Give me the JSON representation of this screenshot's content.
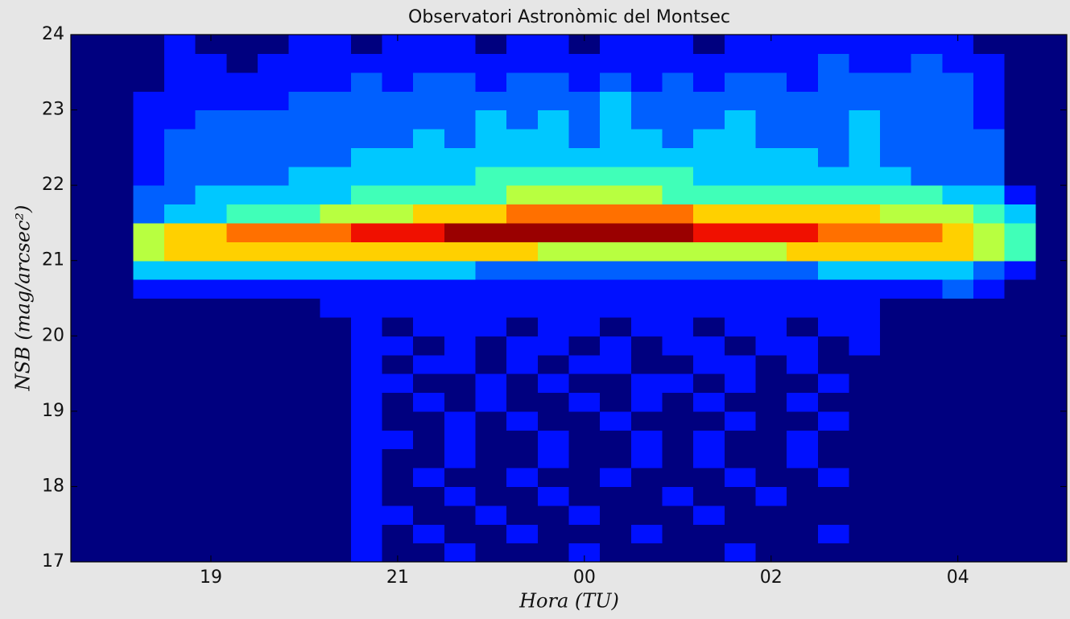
{
  "chart_data": {
    "type": "heatmap",
    "title": "Observatori Astronòmic del Montsec",
    "x_label": "Hora (TU)",
    "y_label": "NSB (mag/arcsec²)",
    "categories": [
      null,
      null,
      null,
      null,
      "19",
      null,
      null,
      null,
      null,
      null,
      "21",
      null,
      null,
      null,
      null,
      null,
      "00",
      null,
      null,
      null,
      null,
      null,
      "02",
      null,
      null,
      null,
      null,
      null,
      "04",
      null,
      null,
      null
    ],
    "ybins": [
      17,
      17.25,
      17.5,
      17.75,
      18,
      18.25,
      18.5,
      18.75,
      19,
      19.25,
      19.5,
      19.75,
      20,
      20.25,
      20.5,
      20.75,
      21,
      21.25,
      21.5,
      21.75,
      22,
      22.25,
      22.5,
      22.75,
      23,
      23.25,
      23.5,
      23.75,
      24
    ],
    "ylim": [
      17,
      24
    ],
    "yticks": [
      17,
      18,
      19,
      20,
      21,
      22,
      23,
      24
    ],
    "colors": [
      "#00007f",
      "#0010ff",
      "#0060ff",
      "#00c8ff",
      "#40ffb8",
      "#b8ff40",
      "#ffd000",
      "#ff7000",
      "#f01000",
      "#9a0000"
    ],
    "z": [
      [
        0,
        0,
        0,
        0,
        0,
        0,
        0,
        0,
        0,
        1,
        0,
        0,
        1,
        0,
        0,
        0,
        1,
        0,
        0,
        0,
        0,
        1,
        0,
        0,
        0,
        0,
        0,
        0,
        0,
        0,
        0,
        0
      ],
      [
        0,
        0,
        0,
        0,
        0,
        0,
        0,
        0,
        0,
        1,
        0,
        1,
        0,
        0,
        1,
        0,
        0,
        0,
        1,
        0,
        0,
        0,
        0,
        0,
        1,
        0,
        0,
        0,
        0,
        0,
        0,
        0
      ],
      [
        0,
        0,
        0,
        0,
        0,
        0,
        0,
        0,
        0,
        1,
        1,
        0,
        0,
        1,
        0,
        0,
        1,
        0,
        0,
        0,
        1,
        0,
        0,
        0,
        0,
        0,
        0,
        0,
        0,
        0,
        0,
        0
      ],
      [
        0,
        0,
        0,
        0,
        0,
        0,
        0,
        0,
        0,
        1,
        0,
        0,
        1,
        0,
        0,
        1,
        0,
        0,
        0,
        1,
        0,
        0,
        1,
        0,
        0,
        0,
        0,
        0,
        0,
        0,
        0,
        0
      ],
      [
        0,
        0,
        0,
        0,
        0,
        0,
        0,
        0,
        0,
        1,
        0,
        1,
        0,
        0,
        1,
        0,
        0,
        1,
        0,
        0,
        0,
        1,
        0,
        0,
        1,
        0,
        0,
        0,
        0,
        0,
        0,
        0
      ],
      [
        0,
        0,
        0,
        0,
        0,
        0,
        0,
        0,
        0,
        1,
        0,
        0,
        1,
        0,
        0,
        1,
        0,
        0,
        1,
        0,
        1,
        0,
        0,
        1,
        0,
        0,
        0,
        0,
        0,
        0,
        0,
        0
      ],
      [
        0,
        0,
        0,
        0,
        0,
        0,
        0,
        0,
        0,
        1,
        1,
        0,
        1,
        0,
        0,
        1,
        0,
        0,
        1,
        0,
        1,
        0,
        0,
        1,
        0,
        0,
        0,
        0,
        0,
        0,
        0,
        0
      ],
      [
        0,
        0,
        0,
        0,
        0,
        0,
        0,
        0,
        0,
        1,
        0,
        0,
        1,
        0,
        1,
        0,
        0,
        1,
        0,
        0,
        0,
        1,
        0,
        0,
        1,
        0,
        0,
        0,
        0,
        0,
        0,
        0
      ],
      [
        0,
        0,
        0,
        0,
        0,
        0,
        0,
        0,
        0,
        1,
        0,
        1,
        0,
        1,
        0,
        0,
        1,
        0,
        1,
        0,
        1,
        0,
        0,
        1,
        0,
        0,
        0,
        0,
        0,
        0,
        0,
        0
      ],
      [
        0,
        0,
        0,
        0,
        0,
        0,
        0,
        0,
        0,
        1,
        1,
        0,
        0,
        1,
        0,
        1,
        0,
        0,
        1,
        1,
        0,
        1,
        0,
        0,
        1,
        0,
        0,
        0,
        0,
        0,
        0,
        0
      ],
      [
        0,
        0,
        0,
        0,
        0,
        0,
        0,
        0,
        0,
        1,
        0,
        1,
        1,
        0,
        1,
        0,
        1,
        1,
        0,
        0,
        1,
        1,
        0,
        1,
        0,
        0,
        0,
        0,
        0,
        0,
        0,
        0
      ],
      [
        0,
        0,
        0,
        0,
        0,
        0,
        0,
        0,
        0,
        1,
        1,
        0,
        1,
        0,
        1,
        1,
        0,
        1,
        0,
        1,
        1,
        0,
        1,
        1,
        0,
        1,
        0,
        0,
        0,
        0,
        0,
        0
      ],
      [
        0,
        0,
        0,
        0,
        0,
        0,
        0,
        0,
        0,
        1,
        0,
        1,
        1,
        1,
        0,
        1,
        1,
        0,
        1,
        1,
        0,
        1,
        1,
        0,
        1,
        1,
        0,
        0,
        0,
        0,
        0,
        0
      ],
      [
        0,
        0,
        0,
        0,
        0,
        0,
        0,
        0,
        1,
        1,
        1,
        1,
        1,
        1,
        1,
        1,
        1,
        1,
        1,
        1,
        1,
        1,
        1,
        1,
        1,
        1,
        0,
        0,
        0,
        0,
        0,
        0
      ],
      [
        0,
        0,
        1,
        1,
        1,
        1,
        1,
        1,
        1,
        1,
        1,
        1,
        1,
        1,
        1,
        1,
        1,
        1,
        1,
        1,
        1,
        1,
        1,
        1,
        1,
        1,
        1,
        1,
        2,
        1,
        0,
        0
      ],
      [
        0,
        0,
        3,
        3,
        3,
        3,
        3,
        3,
        3,
        3,
        3,
        3,
        3,
        2,
        2,
        2,
        2,
        2,
        2,
        2,
        2,
        2,
        2,
        2,
        3,
        3,
        3,
        3,
        3,
        2,
        1,
        0
      ],
      [
        0,
        0,
        5,
        6,
        6,
        6,
        6,
        6,
        6,
        6,
        6,
        6,
        6,
        6,
        6,
        5,
        5,
        5,
        5,
        5,
        5,
        5,
        5,
        6,
        6,
        6,
        6,
        6,
        6,
        5,
        4,
        0
      ],
      [
        0,
        0,
        5,
        6,
        6,
        7,
        7,
        7,
        7,
        8,
        8,
        8,
        9,
        9,
        9,
        9,
        9,
        9,
        9,
        9,
        8,
        8,
        8,
        8,
        7,
        7,
        7,
        7,
        6,
        5,
        4,
        0
      ],
      [
        0,
        0,
        2,
        3,
        3,
        4,
        4,
        4,
        5,
        5,
        5,
        6,
        6,
        6,
        7,
        7,
        7,
        7,
        7,
        7,
        6,
        6,
        6,
        6,
        6,
        6,
        5,
        5,
        5,
        4,
        3,
        0
      ],
      [
        0,
        0,
        2,
        2,
        3,
        3,
        3,
        3,
        3,
        4,
        4,
        4,
        4,
        4,
        5,
        5,
        5,
        5,
        5,
        4,
        4,
        4,
        4,
        4,
        4,
        4,
        4,
        4,
        3,
        3,
        1,
        0
      ],
      [
        0,
        0,
        1,
        2,
        2,
        2,
        2,
        3,
        3,
        3,
        3,
        3,
        3,
        4,
        4,
        4,
        4,
        4,
        4,
        4,
        3,
        3,
        3,
        3,
        3,
        3,
        3,
        2,
        2,
        2,
        0,
        0
      ],
      [
        0,
        0,
        1,
        2,
        2,
        2,
        2,
        2,
        2,
        3,
        3,
        3,
        3,
        3,
        3,
        3,
        3,
        3,
        3,
        3,
        3,
        3,
        3,
        3,
        2,
        3,
        2,
        2,
        2,
        2,
        0,
        0
      ],
      [
        0,
        0,
        1,
        2,
        2,
        2,
        2,
        2,
        2,
        2,
        2,
        3,
        2,
        3,
        3,
        3,
        2,
        3,
        3,
        2,
        3,
        3,
        2,
        2,
        2,
        3,
        2,
        2,
        2,
        2,
        0,
        0
      ],
      [
        0,
        0,
        1,
        1,
        2,
        2,
        2,
        2,
        2,
        2,
        2,
        2,
        2,
        3,
        2,
        3,
        2,
        3,
        2,
        2,
        2,
        3,
        2,
        2,
        2,
        3,
        2,
        2,
        2,
        1,
        0,
        0
      ],
      [
        0,
        0,
        1,
        1,
        1,
        1,
        1,
        2,
        2,
        2,
        2,
        2,
        2,
        2,
        2,
        2,
        2,
        3,
        2,
        2,
        2,
        2,
        2,
        2,
        2,
        2,
        2,
        2,
        2,
        1,
        0,
        0
      ],
      [
        0,
        0,
        0,
        1,
        1,
        1,
        1,
        1,
        1,
        2,
        1,
        2,
        2,
        1,
        2,
        2,
        1,
        2,
        1,
        2,
        1,
        2,
        2,
        1,
        2,
        2,
        2,
        2,
        2,
        1,
        0,
        0
      ],
      [
        0,
        0,
        0,
        1,
        1,
        0,
        1,
        1,
        1,
        1,
        1,
        1,
        1,
        1,
        1,
        1,
        1,
        1,
        1,
        1,
        1,
        1,
        1,
        1,
        2,
        1,
        1,
        2,
        1,
        1,
        0,
        0
      ],
      [
        0,
        0,
        0,
        1,
        0,
        0,
        0,
        1,
        1,
        0,
        1,
        1,
        1,
        0,
        1,
        1,
        0,
        1,
        1,
        1,
        0,
        1,
        1,
        1,
        1,
        1,
        1,
        1,
        1,
        0,
        0,
        0
      ]
    ]
  }
}
